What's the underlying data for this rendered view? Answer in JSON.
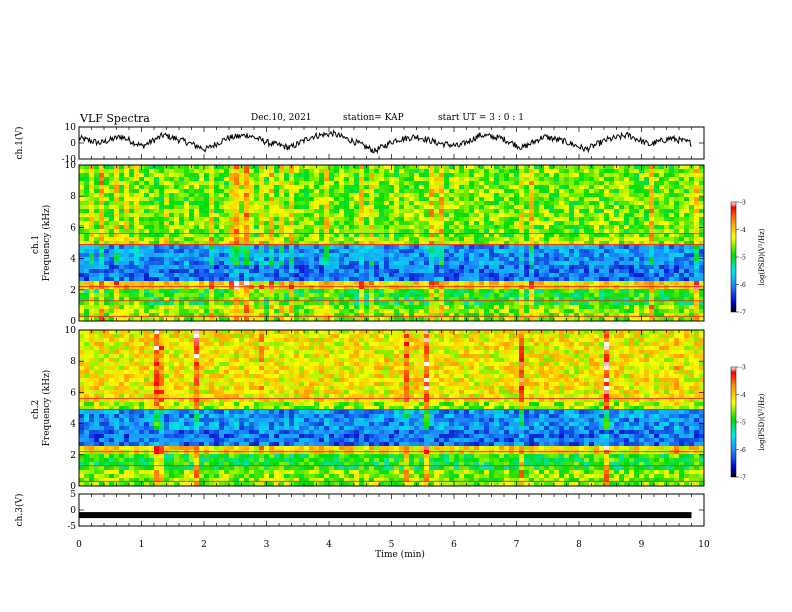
{
  "header": {
    "title": "VLF Spectra",
    "date": "Dec.10, 2021",
    "station": "station= KAP",
    "start": "start  UT  =   3  : 0   : 1"
  },
  "chart_data": [
    {
      "type": "line",
      "panel": "ch1-waveform",
      "ylabel": "ch.1(V)",
      "xlim": [
        0,
        10
      ],
      "ylim": [
        -10,
        10
      ],
      "yticks": [
        "10",
        "0",
        "-10"
      ],
      "x_end": 9.8,
      "series": [
        {
          "values": [
            3,
            0,
            4,
            -2,
            5,
            1,
            -4,
            3,
            5,
            0,
            -3,
            4,
            6,
            1,
            -5,
            2,
            4,
            0,
            -2,
            5,
            3,
            -3,
            4,
            1,
            -4,
            2,
            5,
            -1,
            3,
            0
          ]
        }
      ]
    },
    {
      "type": "heatmap",
      "panel": "ch1-spectrogram",
      "ylabel": "ch.1\nFrequency (kHz)",
      "ylabel_lines": [
        "ch.1",
        "Frequency (kHz)"
      ],
      "xlim": [
        0,
        10
      ],
      "ylim": [
        0,
        10
      ],
      "yticks": [
        "0",
        "2",
        "4",
        "6",
        "8",
        "10"
      ],
      "colorbar": {
        "label": "log(PSD)(V²/Hz)",
        "ticks": [
          "-3",
          "-4",
          "-5",
          "-6",
          "-7"
        ],
        "range": [
          -7,
          -3
        ]
      }
    },
    {
      "type": "heatmap",
      "panel": "ch2-spectrogram",
      "ylabel": "ch.2\nFrequency (kHz)",
      "ylabel_lines": [
        "ch.2",
        "Frequency (kHz)"
      ],
      "xlim": [
        0,
        10
      ],
      "ylim": [
        0,
        10
      ],
      "yticks": [
        "0",
        "2",
        "4",
        "6",
        "8",
        "10"
      ],
      "colorbar": {
        "label": "log(PSD)(V²/Hz)",
        "ticks": [
          "-3",
          "-4",
          "-5",
          "-6",
          "-7"
        ],
        "range": [
          -7,
          -3
        ]
      }
    },
    {
      "type": "line",
      "panel": "ch3-waveform",
      "ylabel": "ch.3(V)",
      "xlim": [
        0,
        10
      ],
      "ylim": [
        -5,
        5
      ],
      "yticks": [
        "5",
        "0",
        "-5"
      ],
      "series": [
        {
          "values": [
            -1.6,
            -1.6
          ]
        }
      ],
      "xlabel": "Time  (min)",
      "xticks": [
        "0",
        "1",
        "2",
        "3",
        "4",
        "5",
        "6",
        "7",
        "8",
        "9",
        "10"
      ]
    }
  ]
}
